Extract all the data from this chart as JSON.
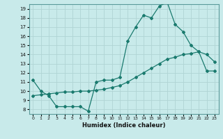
{
  "title": "",
  "xlabel": "Humidex (Indice chaleur)",
  "ylabel": "",
  "background_color": "#c8eaea",
  "grid_color": "#b0d4d4",
  "line_color": "#1a7a6e",
  "xlim": [
    -0.5,
    23.5
  ],
  "ylim": [
    7.5,
    19.5
  ],
  "xticks": [
    0,
    1,
    2,
    3,
    4,
    5,
    6,
    7,
    8,
    9,
    10,
    11,
    12,
    13,
    14,
    15,
    16,
    17,
    18,
    19,
    20,
    21,
    22,
    23
  ],
  "yticks": [
    8,
    9,
    10,
    11,
    12,
    13,
    14,
    15,
    16,
    17,
    18,
    19
  ],
  "line1_x": [
    0,
    1,
    2,
    3,
    4,
    5,
    6,
    7,
    8,
    9,
    10,
    11,
    12,
    13,
    14,
    15,
    16,
    17,
    18,
    19,
    20,
    21,
    22,
    23
  ],
  "line1_y": [
    11.2,
    10.0,
    9.5,
    8.3,
    8.3,
    8.3,
    8.3,
    7.8,
    11.0,
    11.2,
    11.2,
    11.5,
    15.5,
    17.0,
    18.3,
    18.0,
    19.3,
    19.7,
    17.3,
    16.5,
    15.0,
    14.3,
    14.0,
    13.2
  ],
  "line2_x": [
    0,
    1,
    2,
    3,
    4,
    5,
    6,
    7,
    8,
    9,
    10,
    11,
    12,
    13,
    14,
    15,
    16,
    17,
    18,
    19,
    20,
    21,
    22,
    23
  ],
  "line2_y": [
    9.5,
    9.6,
    9.7,
    9.8,
    9.9,
    9.9,
    10.0,
    10.0,
    10.1,
    10.2,
    10.4,
    10.6,
    11.0,
    11.5,
    12.0,
    12.5,
    13.0,
    13.5,
    13.7,
    14.0,
    14.1,
    14.3,
    12.2,
    12.2
  ]
}
